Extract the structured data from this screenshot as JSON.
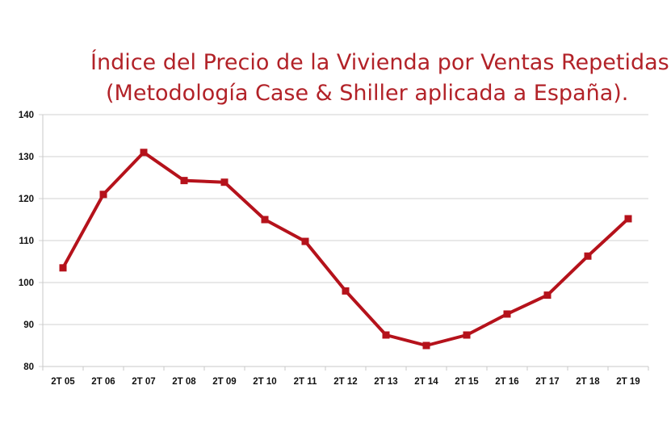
{
  "chart_data": {
    "type": "line",
    "title": "Índice del Precio de la Vivienda por Ventas Repetidas",
    "subtitle": "(Metodología Case & Shiller aplicada a España).",
    "xlabel": "",
    "ylabel": "",
    "categories": [
      "2T 05",
      "2T 06",
      "2T 07",
      "2T 08",
      "2T 09",
      "2T 10",
      "2T 11",
      "2T 12",
      "2T 13",
      "2T 14",
      "2T 15",
      "2T 16",
      "2T 17",
      "2T 18",
      "2T 19"
    ],
    "series": [
      {
        "values": [
          103.5,
          121,
          131,
          124.3,
          123.9,
          115,
          109.8,
          98,
          87.5,
          85,
          87.5,
          92.5,
          97,
          106.3,
          115.2
        ],
        "color": "#b5121b",
        "marker": "square"
      }
    ],
    "ylim": [
      80,
      140
    ],
    "yticks": [
      80,
      90,
      100,
      110,
      120,
      130,
      140
    ],
    "grid": true,
    "legend": "none"
  }
}
